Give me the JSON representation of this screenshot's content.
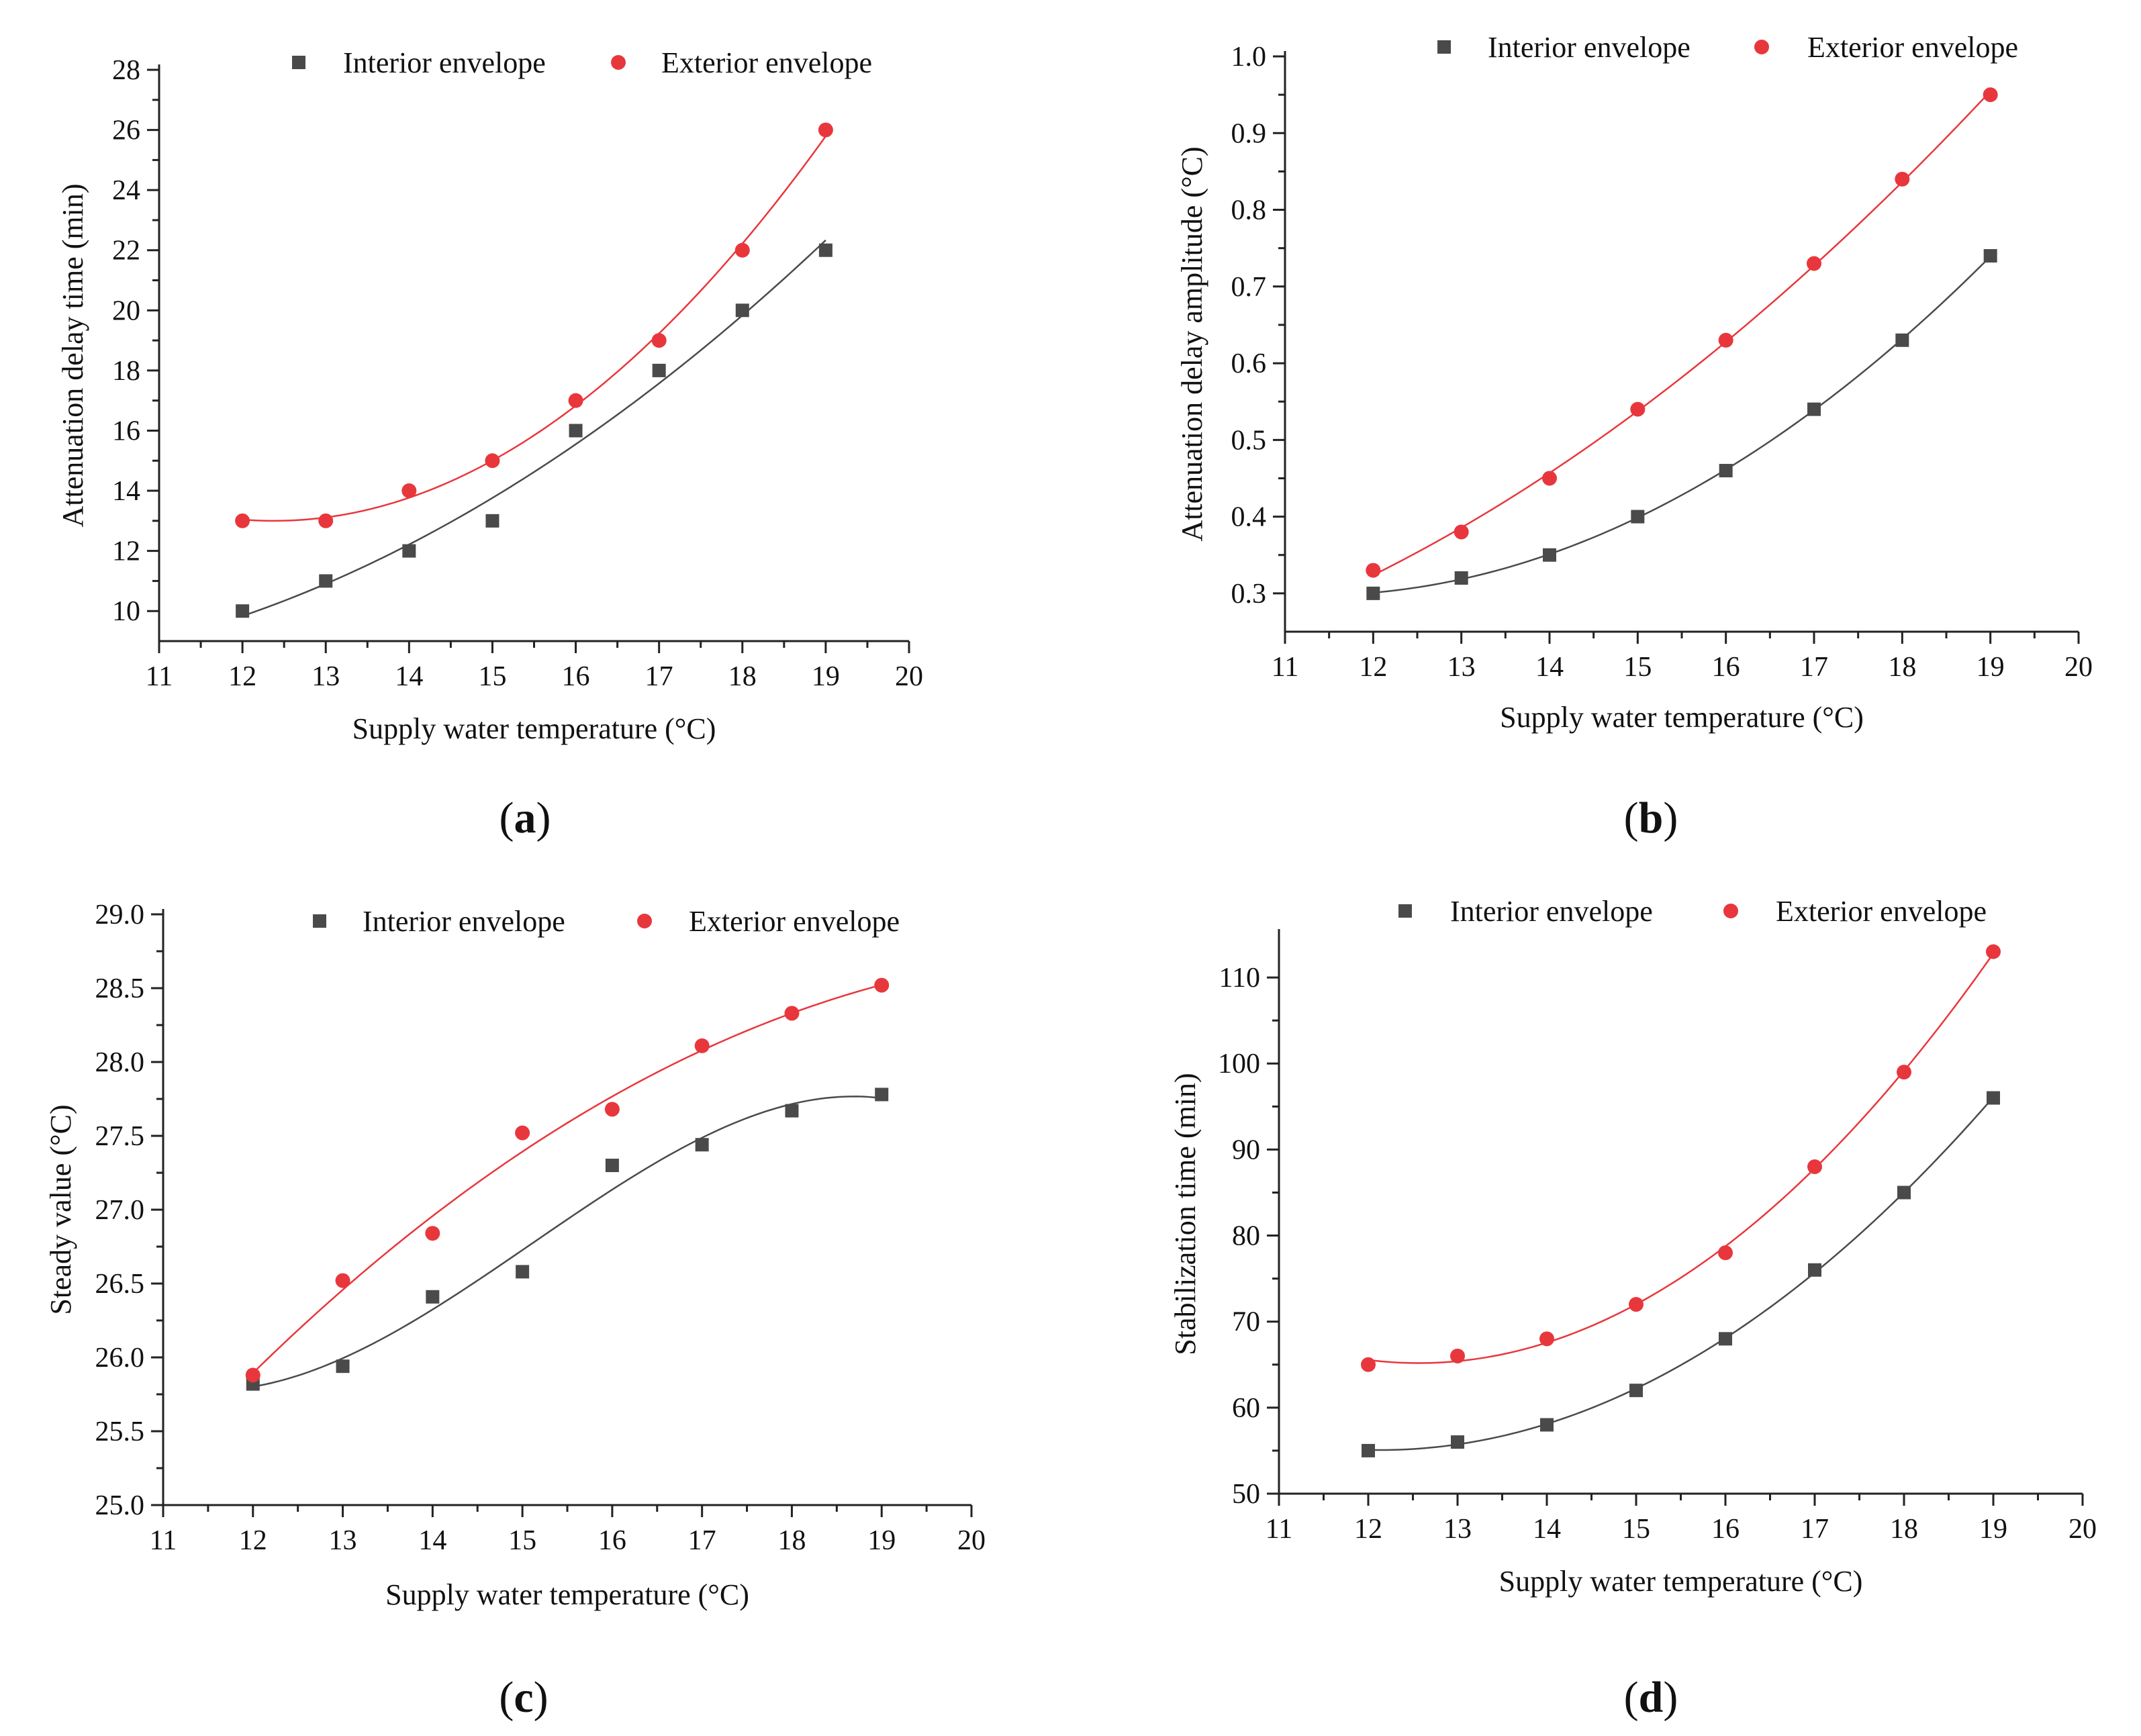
{
  "chart_data": [
    {
      "panel": "a",
      "type": "scatter",
      "fit": "polynomial",
      "xlabel": "Supply water temperature (°C)",
      "ylabel": "Attenuation delay time (min)",
      "xlim": [
        11,
        20
      ],
      "ylim": [
        9,
        28
      ],
      "xticks": [
        11,
        12,
        13,
        14,
        15,
        16,
        17,
        18,
        19,
        20
      ],
      "yticks": [
        10,
        12,
        14,
        16,
        18,
        20,
        22,
        24,
        26,
        28
      ],
      "ytick_labels": [
        "10",
        "12",
        "14",
        "16",
        "18",
        "20",
        "22",
        "24",
        "26",
        "28"
      ],
      "legend_position": "top-center",
      "series": [
        {
          "name": "Interior envelope",
          "marker": "square",
          "color": "#4a4a4a",
          "x": [
            12,
            13,
            14,
            15,
            16,
            17,
            18,
            19
          ],
          "values": [
            10,
            11,
            12,
            13,
            16,
            18,
            20,
            22
          ]
        },
        {
          "name": "Exterior envelope",
          "marker": "circle",
          "color": "#e8373c",
          "x": [
            12,
            13,
            14,
            15,
            16,
            17,
            18,
            19
          ],
          "values": [
            13,
            13,
            14,
            15,
            17,
            19,
            22,
            26
          ]
        }
      ]
    },
    {
      "panel": "b",
      "type": "scatter",
      "fit": "polynomial",
      "xlabel": "Supply water temperature (°C)",
      "ylabel": "Attenuation delay amplitude (°C)",
      "xlim": [
        11,
        20
      ],
      "ylim": [
        0.25,
        1.0
      ],
      "xticks": [
        11,
        12,
        13,
        14,
        15,
        16,
        17,
        18,
        19,
        20
      ],
      "yticks": [
        0.3,
        0.4,
        0.5,
        0.6,
        0.7,
        0.8,
        0.9,
        1.0
      ],
      "ytick_labels": [
        "0.3",
        "0.4",
        "0.5",
        "0.6",
        "0.7",
        "0.8",
        "0.9",
        "1.0"
      ],
      "legend_position": "top-right",
      "series": [
        {
          "name": "Interior envelope",
          "marker": "square",
          "color": "#4a4a4a",
          "x": [
            12,
            13,
            14,
            15,
            16,
            17,
            18,
            19
          ],
          "values": [
            0.3,
            0.32,
            0.35,
            0.4,
            0.46,
            0.54,
            0.63,
            0.74
          ]
        },
        {
          "name": "Exterior envelope",
          "marker": "circle",
          "color": "#e8373c",
          "x": [
            12,
            13,
            14,
            15,
            16,
            17,
            18,
            19
          ],
          "values": [
            0.33,
            0.38,
            0.45,
            0.54,
            0.63,
            0.73,
            0.84,
            0.95
          ]
        }
      ]
    },
    {
      "panel": "c",
      "type": "scatter",
      "fit": "polynomial",
      "xlabel": "Supply water temperature (°C)",
      "ylabel": "Steady value (°C)",
      "xlim": [
        11,
        20
      ],
      "ylim": [
        25.0,
        29.0
      ],
      "xticks": [
        11,
        12,
        13,
        14,
        15,
        16,
        17,
        18,
        19,
        20
      ],
      "yticks": [
        25.0,
        25.5,
        26.0,
        26.5,
        27.0,
        27.5,
        28.0,
        28.5,
        29.0
      ],
      "ytick_labels": [
        "25.0",
        "25.5",
        "26.0",
        "26.5",
        "27.0",
        "27.5",
        "28.0",
        "28.5",
        "29.0"
      ],
      "legend_position": "top-center",
      "series": [
        {
          "name": "Interior envelope",
          "marker": "square",
          "color": "#4a4a4a",
          "x": [
            12,
            13,
            14,
            15,
            16,
            17,
            18,
            19
          ],
          "values": [
            25.82,
            25.94,
            26.41,
            26.58,
            27.3,
            27.44,
            27.67,
            27.78
          ]
        },
        {
          "name": "Exterior envelope",
          "marker": "circle",
          "color": "#e8373c",
          "x": [
            12,
            13,
            14,
            15,
            16,
            17,
            18,
            19
          ],
          "values": [
            25.88,
            26.52,
            26.84,
            27.52,
            27.68,
            28.11,
            28.33,
            28.52
          ]
        }
      ]
    },
    {
      "panel": "d",
      "type": "scatter",
      "fit": "polynomial",
      "xlabel": "Supply water temperature (°C)",
      "ylabel": "Stabilization time (min)",
      "xlim": [
        11,
        20
      ],
      "ylim": [
        50,
        115
      ],
      "xticks": [
        11,
        12,
        13,
        14,
        15,
        16,
        17,
        18,
        19,
        20
      ],
      "yticks": [
        50,
        60,
        70,
        80,
        90,
        100,
        110
      ],
      "ytick_labels": [
        "50",
        "60",
        "70",
        "80",
        "90",
        "100",
        "110"
      ],
      "legend_position": "top-right",
      "series": [
        {
          "name": "Interior envelope",
          "marker": "square",
          "color": "#4a4a4a",
          "x": [
            12,
            13,
            14,
            15,
            16,
            17,
            18,
            19
          ],
          "values": [
            55,
            56,
            58,
            62,
            68,
            76,
            85,
            96
          ]
        },
        {
          "name": "Exterior envelope",
          "marker": "circle",
          "color": "#e8373c",
          "x": [
            12,
            13,
            14,
            15,
            16,
            17,
            18,
            19
          ],
          "values": [
            65,
            66,
            68,
            72,
            78,
            88,
            99,
            113
          ]
        }
      ]
    }
  ],
  "panel_labels": [
    "a",
    "b",
    "c",
    "d"
  ]
}
